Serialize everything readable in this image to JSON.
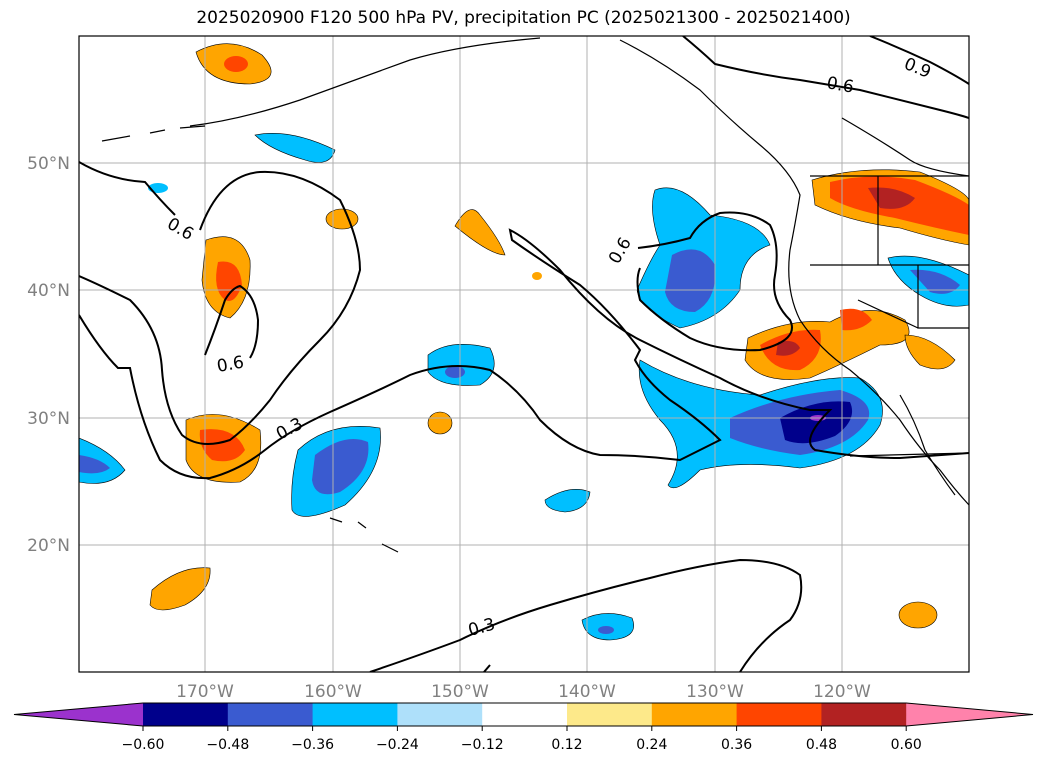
{
  "title": "2025020900 F120 500 hPa PV, precipitation PC (2025021300 - 2025021400)",
  "map": {
    "lat_labels": [
      "50°N",
      "40°N",
      "30°N",
      "20°N"
    ],
    "lon_labels": [
      "170°W",
      "160°W",
      "150°W",
      "140°W",
      "130°W",
      "120°W"
    ],
    "contour_labels": [
      "0.9",
      "0.6",
      "0.6",
      "0.6",
      "0.6",
      "0.3",
      "0.3"
    ]
  },
  "colorbar": {
    "ticks": [
      "−0.60",
      "−0.48",
      "−0.36",
      "−0.24",
      "−0.12",
      "0.12",
      "0.24",
      "0.36",
      "0.48",
      "0.60"
    ],
    "colors": [
      "#9b32cd",
      "#00008b",
      "#3a5bd0",
      "#00bfff",
      "#aee0fa",
      "#ffffff",
      "#fde98a",
      "#ffa500",
      "#ff4500",
      "#b22222",
      "#ff82ab"
    ]
  }
}
